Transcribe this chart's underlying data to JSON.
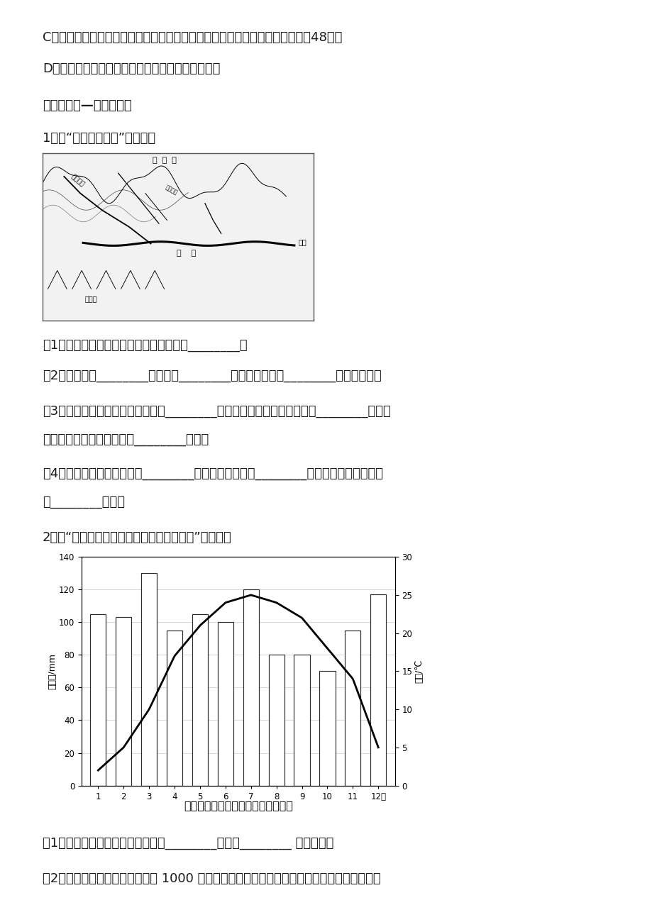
{
  "bg_color": "#ffffff",
  "text_color": "#1a1a1a",
  "line_C": "C．目前田纳西河经俨亚俄河和密西西比河与五大湖相通，通过水运可达本土的48个州",
  "line_D": "D．田纳西河流域目前已成为美国最大电力供应基地",
  "section_header": "《巩固提高—登峰揓月》",
  "q1_header": "1．读“流域与水系图”，回答：",
  "q1_1": "（1）一条河流与另一条河流的分界线称为________。",
  "q1_2": "（2）水系是由________和一系列________构成，流域则是________的集水区域。",
  "q1_3": "（3）在密西西比河水系中，干流是________，俨亚俄河属于密西西比河的________支流，",
  "q1_3b": "田纳西河属于密西西比河的________支流。",
  "q1_4": "（4）在长江水系中，干流是________，屷江属于长江的________支流，大渡河属于长江",
  "q1_4b": "的________支流。",
  "q2_header": "2．读“诺克斯维尔市年内各月气温和降水量”，回答：",
  "chart_title": "诺克斯维尔市年内各月气温和降水量",
  "ylabel_left": "降水量/mm",
  "ylabel_right": "气温/℃",
  "months_labels": [
    "1",
    "2",
    "3",
    "4",
    "5",
    "6",
    "7",
    "8",
    "9",
    "10",
    "11",
    "12月"
  ],
  "precipitation": [
    105,
    103,
    130,
    95,
    105,
    100,
    120,
    80,
    80,
    70,
    95,
    117
  ],
  "temperature": [
    2,
    5,
    10,
    17,
    21,
    24,
    25,
    24,
    22,
    18,
    14,
    5
  ],
  "precip_ylim": [
    0,
    140
  ],
  "temp_ylim": [
    0,
    30
  ],
  "precip_yticks": [
    0,
    20,
    40,
    60,
    80,
    100,
    120,
    140
  ],
  "temp_yticks": [
    0,
    5,
    10,
    15,
    20,
    25,
    30
  ],
  "q2_1": "（1）诺克斯维尔市最低月均温大于________，属于________ （温度带）",
  "q2_2": "（2）诺克斯维尔市年降水量大于 1000 毫米，气候特点是，总的说来，降水量季节变化特点为"
}
